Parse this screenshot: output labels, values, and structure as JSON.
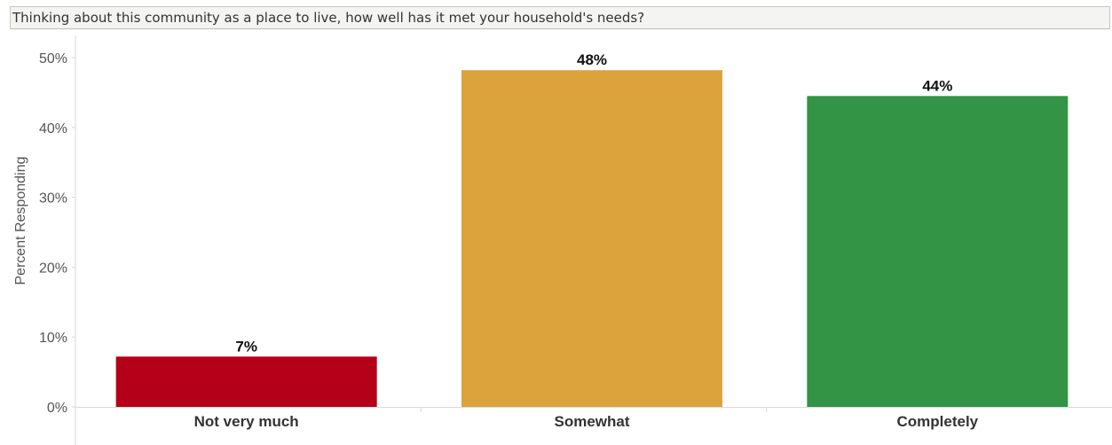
{
  "header": {
    "title": "Thinking about this community as a place to live, how well has it met your household's needs?"
  },
  "chart_data": {
    "type": "bar",
    "title": "Thinking about this community as a place to live, how well has it met your household's needs?",
    "xlabel": "",
    "ylabel": "Percent Responding",
    "categories": [
      "Not very much",
      "Somewhat",
      "Completely"
    ],
    "values": [
      7.2,
      48.2,
      44.5
    ],
    "data_labels": [
      "7%",
      "48%",
      "44%"
    ],
    "colors": [
      "#b40019",
      "#dca23b",
      "#329444"
    ],
    "ylim": [
      0,
      53
    ],
    "yticks": [
      0,
      10,
      20,
      30,
      40,
      50
    ],
    "ytick_labels": [
      "0%",
      "10%",
      "20%",
      "30%",
      "40%",
      "50%"
    ],
    "grid": false,
    "legend": "none"
  }
}
